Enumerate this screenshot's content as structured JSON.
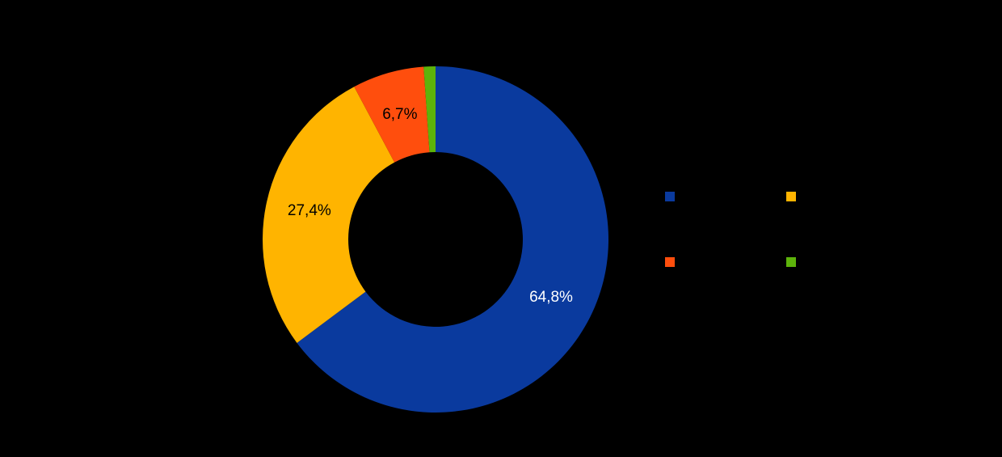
{
  "canvas": {
    "background_color": "#000000"
  },
  "chart_data": {
    "type": "pie",
    "subtype": "donut",
    "title": "",
    "unit": "%",
    "decimal_separator": ",",
    "direction": "clockwise",
    "start_angle_deg": 0,
    "legend_position": "right",
    "grid": false,
    "segments": [
      {
        "label": "",
        "value": 64.8,
        "display_label": "64,8%",
        "color": "#0a3a9e",
        "label_color": "#ffffff",
        "show_label": true
      },
      {
        "label": "",
        "value": 27.4,
        "display_label": "27,4%",
        "color": "#ffb400",
        "label_color": "#000000",
        "show_label": true
      },
      {
        "label": "",
        "value": 6.7,
        "display_label": "6,7%",
        "color": "#ff4e0d",
        "label_color": "#000000",
        "show_label": true
      },
      {
        "label": "",
        "value": 1.1,
        "display_label": "",
        "color": "#5db30b",
        "label_color": "#000000",
        "show_label": false
      }
    ]
  },
  "legend": {
    "items": [
      {
        "label": "",
        "color": "#0a3a9e"
      },
      {
        "label": "",
        "color": "#ffb400"
      },
      {
        "label": "",
        "color": "#ff4e0d"
      },
      {
        "label": "",
        "color": "#5db30b"
      }
    ]
  }
}
